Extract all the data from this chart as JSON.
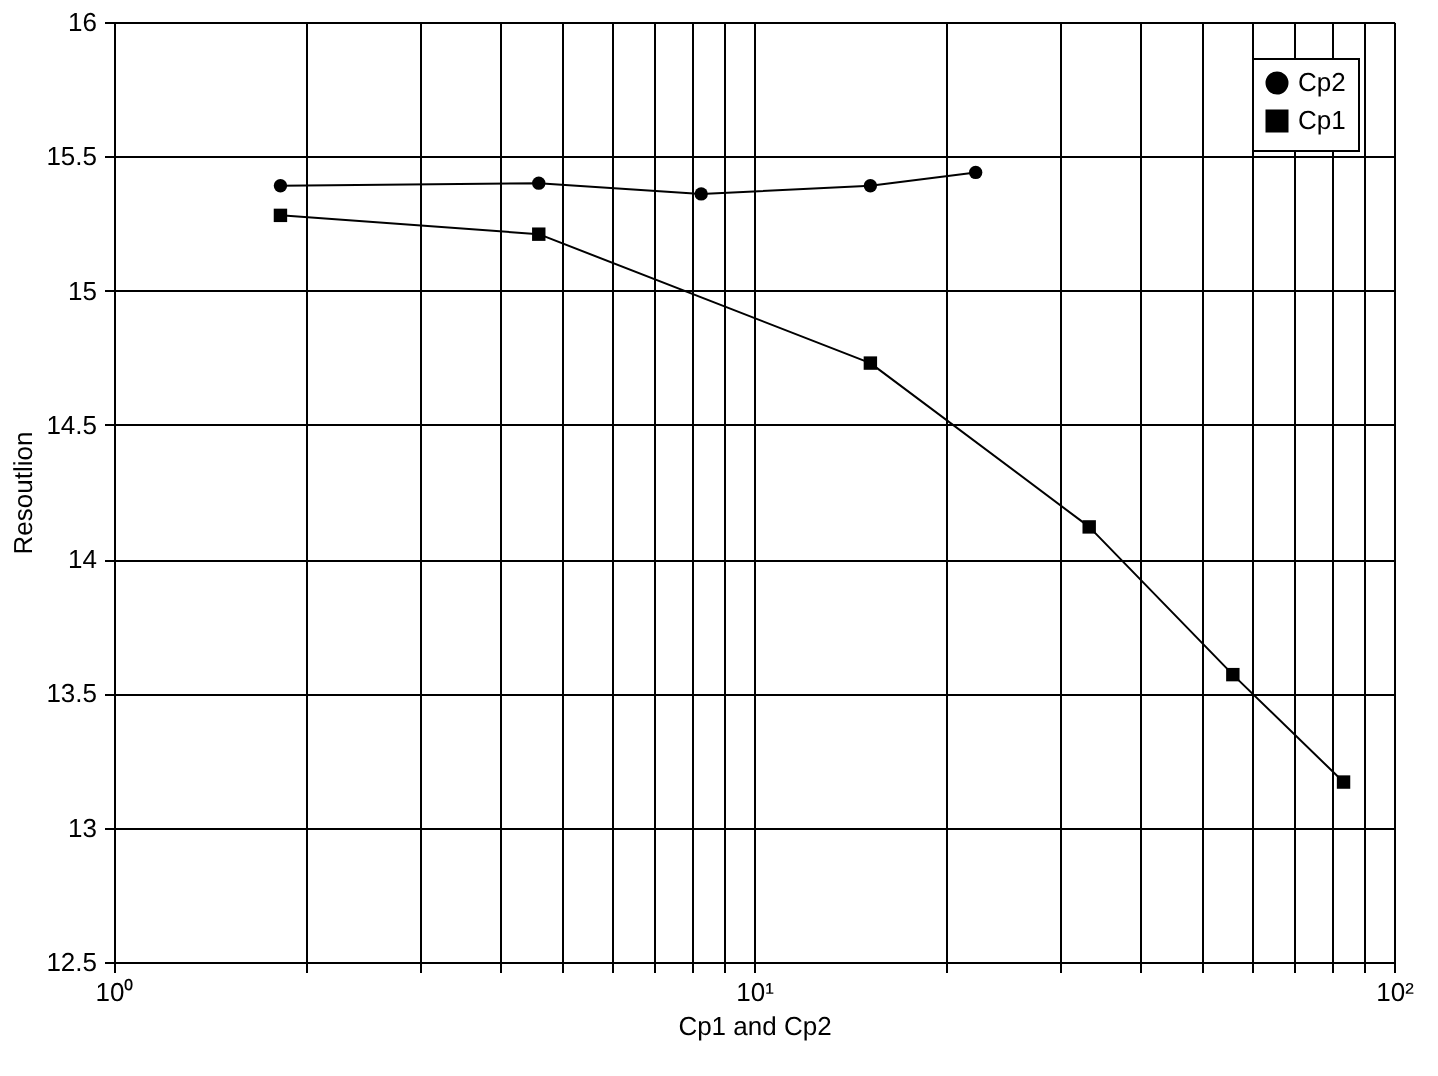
{
  "chart_data": {
    "type": "line",
    "xlabel": "Cp1 and Cp2",
    "ylabel": "Resoutlion",
    "log": "x",
    "xlim": [
      1,
      100
    ],
    "ylim": [
      12.5,
      16
    ],
    "xticks": [
      {
        "value": 1,
        "label": "10⁰"
      },
      {
        "value": 2,
        "label": null
      },
      {
        "value": 3,
        "label": null
      },
      {
        "value": 4,
        "label": null
      },
      {
        "value": 5,
        "label": null
      },
      {
        "value": 6,
        "label": null
      },
      {
        "value": 7,
        "label": null
      },
      {
        "value": 8,
        "label": null
      },
      {
        "value": 9,
        "label": null
      },
      {
        "value": 10,
        "label": "10¹"
      },
      {
        "value": 20,
        "label": null
      },
      {
        "value": 30,
        "label": null
      },
      {
        "value": 40,
        "label": null
      },
      {
        "value": 50,
        "label": null
      },
      {
        "value": 60,
        "label": null
      },
      {
        "value": 70,
        "label": null
      },
      {
        "value": 80,
        "label": null
      },
      {
        "value": 90,
        "label": null
      },
      {
        "value": 100,
        "label": "10²"
      }
    ],
    "yticks": [
      12.5,
      13,
      13.5,
      14,
      14.5,
      15,
      15.5,
      16
    ],
    "grid": true,
    "legend": "top right",
    "line_style": "solid",
    "series": [
      {
        "name": "Cp2",
        "color": "#000000",
        "marker": "circle",
        "x": [
          1.82,
          4.61,
          8.27,
          15.2,
          22.2
        ],
        "values": [
          15.39,
          15.4,
          15.36,
          15.39,
          15.44
        ]
      },
      {
        "name": "Cp1",
        "color": "#000000",
        "marker": "square",
        "x": [
          1.82,
          4.61,
          15.2,
          33.4,
          56,
          83.4
        ],
        "values": [
          15.28,
          15.21,
          14.73,
          14.12,
          13.57,
          13.17
        ]
      }
    ]
  }
}
